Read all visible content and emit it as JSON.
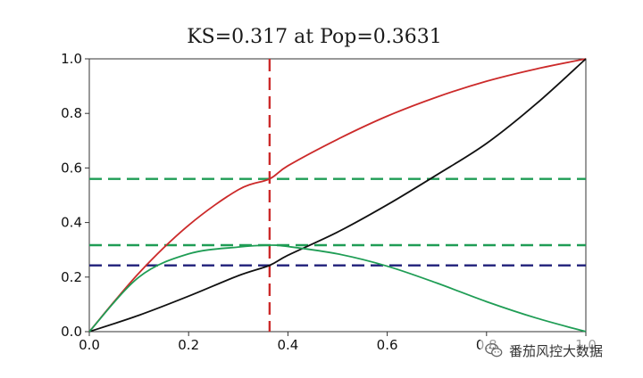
{
  "chart_data": {
    "type": "line",
    "title": "KS=0.317 at Pop=0.3631",
    "xlabel": "",
    "ylabel": "",
    "xlim": [
      0.0,
      1.0
    ],
    "ylim": [
      0.0,
      1.0
    ],
    "xticks": [
      "0.0",
      "0.2",
      "0.4",
      "0.6",
      "0.8",
      "1.0"
    ],
    "yticks": [
      "0.0",
      "0.2",
      "0.4",
      "0.6",
      "0.8",
      "1.0"
    ],
    "grid": false,
    "series": [
      {
        "color": "#cc2a2a",
        "style": "solid",
        "x": [
          0.0,
          0.1,
          0.2,
          0.3,
          0.3631,
          0.4,
          0.5,
          0.6,
          0.7,
          0.8,
          0.9,
          1.0
        ],
        "y": [
          0.0,
          0.215,
          0.39,
          0.52,
          0.56,
          0.608,
          0.705,
          0.79,
          0.86,
          0.918,
          0.963,
          1.0
        ]
      },
      {
        "color": "#111111",
        "style": "solid",
        "x": [
          0.0,
          0.1,
          0.2,
          0.3,
          0.3631,
          0.4,
          0.5,
          0.6,
          0.7,
          0.8,
          0.9,
          1.0
        ],
        "y": [
          0.0,
          0.06,
          0.13,
          0.205,
          0.243,
          0.28,
          0.365,
          0.465,
          0.575,
          0.69,
          0.835,
          1.0
        ]
      },
      {
        "color": "#1f9d55",
        "style": "solid",
        "x": [
          0.0,
          0.1,
          0.2,
          0.3,
          0.3631,
          0.4,
          0.5,
          0.6,
          0.7,
          0.8,
          0.9,
          1.0
        ],
        "y": [
          0.0,
          0.2,
          0.285,
          0.31,
          0.317,
          0.312,
          0.285,
          0.24,
          0.178,
          0.11,
          0.05,
          0.0
        ]
      }
    ],
    "reference_lines": [
      {
        "orientation": "vertical",
        "value": 0.3631,
        "color": "#cc2a2a",
        "style": "dashed"
      },
      {
        "orientation": "horizontal",
        "value": 0.56,
        "color": "#1f9d55",
        "style": "dashed"
      },
      {
        "orientation": "horizontal",
        "value": 0.317,
        "color": "#1f9d55",
        "style": "dashed"
      },
      {
        "orientation": "horizontal",
        "value": 0.243,
        "color": "#1f1f7a",
        "style": "dashed"
      }
    ]
  },
  "watermark": {
    "text": "番茄风控大数据",
    "icon": "wechat-logo-icon"
  }
}
